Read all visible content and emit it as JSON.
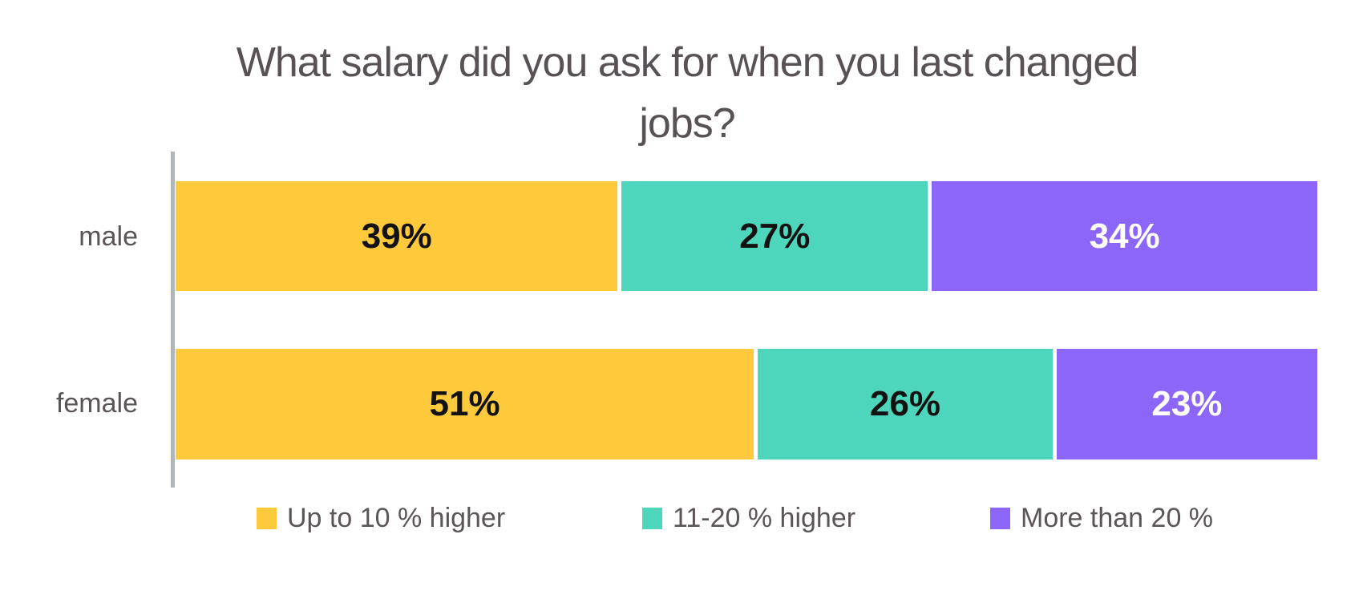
{
  "title": {
    "line1": "What salary did you ask for when you last changed",
    "line2": "jobs?"
  },
  "chart_data": {
    "type": "bar",
    "stacked": true,
    "orientation": "horizontal",
    "title": "What salary did you ask for when you last changed jobs?",
    "categories": [
      "male",
      "female"
    ],
    "series": [
      {
        "name": "Up to 10 % higher",
        "color": "#FFC93C",
        "values": [
          39,
          51
        ],
        "labels": [
          "39%",
          "51%"
        ]
      },
      {
        "name": "11-20 % higher",
        "color": "#4ED6BC",
        "values": [
          27,
          26
        ],
        "labels": [
          "27%",
          "26%"
        ]
      },
      {
        "name": "More than 20 %",
        "color": "#8C66F8",
        "values": [
          34,
          23
        ],
        "labels": [
          "34%",
          "23%"
        ]
      }
    ],
    "value_unit": "%",
    "xlim": [
      0,
      100
    ],
    "legend_position": "bottom",
    "grid": false
  },
  "colors": {
    "background": "#FFFFFF",
    "title_text": "#585257",
    "category_text": "#5B5456",
    "legend_text": "#5C5557",
    "data_label_dark": "#121212",
    "data_label_light": "#FFFFFF",
    "axis_line": "#AEB7BA",
    "segment_separator": "#FFFFFF"
  }
}
